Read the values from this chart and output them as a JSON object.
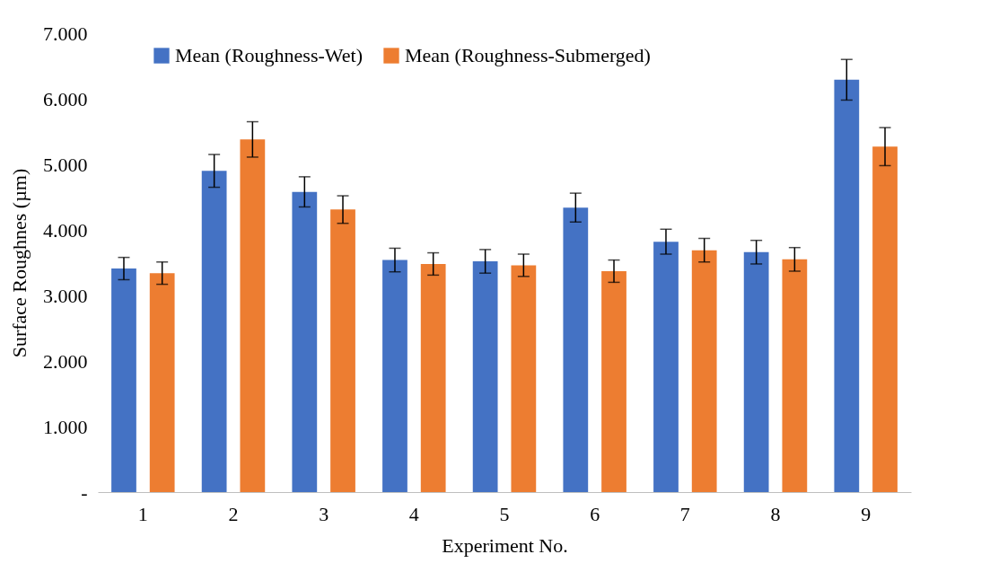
{
  "chart_data": {
    "type": "bar",
    "xlabel": "Experiment No.",
    "ylabel": "Surface Roughnes (µm)",
    "categories": [
      "1",
      "2",
      "3",
      "4",
      "5",
      "6",
      "7",
      "8",
      "9"
    ],
    "series": [
      {
        "name": "Mean (Roughness-Wet)",
        "color": "#4472c4",
        "values": [
          3.41,
          4.9,
          4.58,
          3.54,
          3.52,
          4.34,
          3.82,
          3.66,
          6.29
        ],
        "errors": [
          0.17,
          0.25,
          0.23,
          0.18,
          0.18,
          0.22,
          0.19,
          0.18,
          0.31
        ]
      },
      {
        "name": "Mean (Roughness-Submerged)",
        "color": "#ed7d31",
        "values": [
          3.34,
          5.38,
          4.31,
          3.48,
          3.46,
          3.37,
          3.69,
          3.55,
          5.27
        ],
        "errors": [
          0.17,
          0.27,
          0.21,
          0.17,
          0.17,
          0.17,
          0.18,
          0.18,
          0.29
        ]
      }
    ],
    "ylim": [
      0,
      7
    ],
    "yticks": [
      {
        "value": 0,
        "label": "-"
      },
      {
        "value": 1,
        "label": "1.000"
      },
      {
        "value": 2,
        "label": "2.000"
      },
      {
        "value": 3,
        "label": "3.000"
      },
      {
        "value": 4,
        "label": "4.000"
      },
      {
        "value": 5,
        "label": "5.000"
      },
      {
        "value": 6,
        "label": "6.000"
      },
      {
        "value": 7,
        "label": "7.000"
      }
    ],
    "grid": false,
    "legend": "top"
  }
}
